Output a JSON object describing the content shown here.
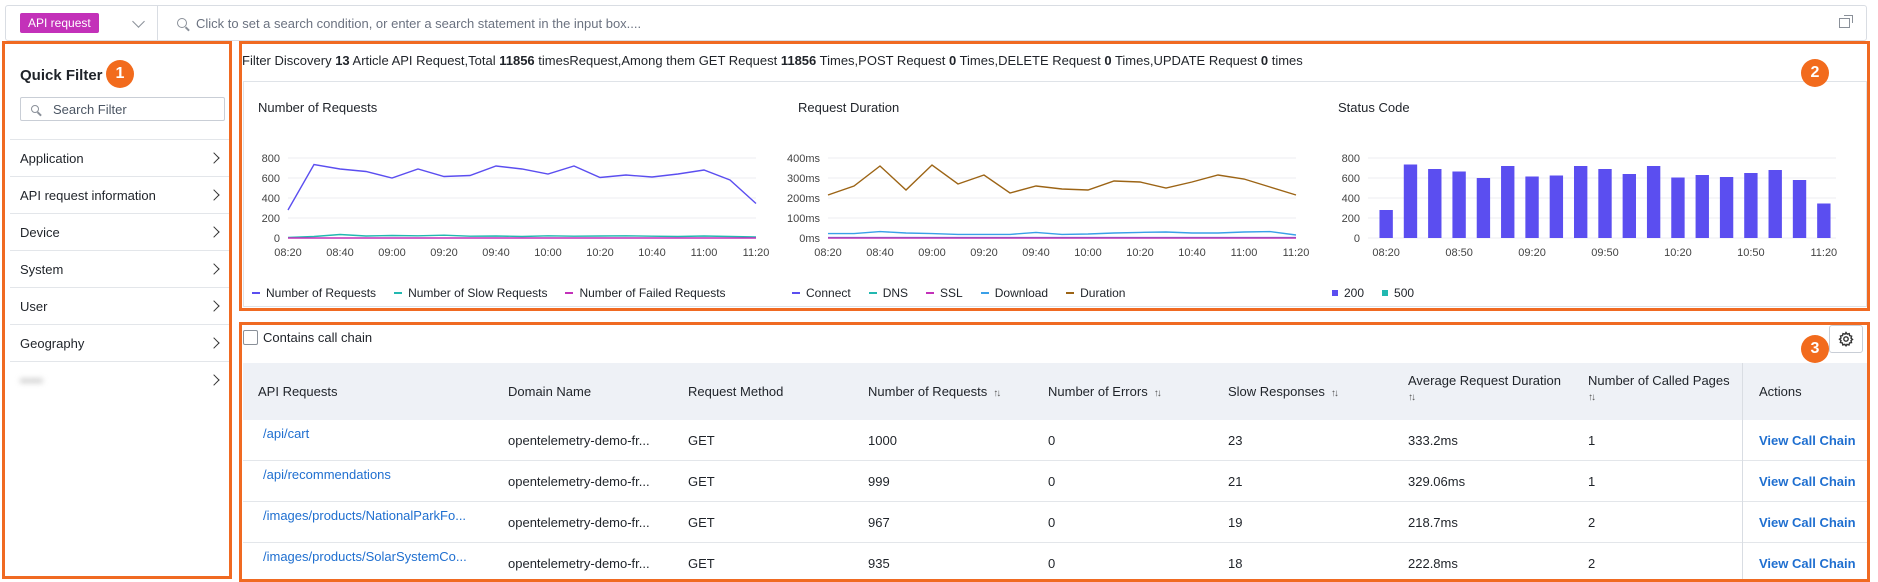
{
  "search": {
    "type_tag": "API request",
    "placeholder": "Click to set a search condition, or enter a search statement in the input box...."
  },
  "badges": [
    "1",
    "2",
    "3"
  ],
  "quick_filter": {
    "title": "Quick Filter",
    "search_placeholder": "Search Filter",
    "items": [
      {
        "label": "Application"
      },
      {
        "label": "API request information"
      },
      {
        "label": "Device"
      },
      {
        "label": "System"
      },
      {
        "label": "User"
      },
      {
        "label": "Geography"
      },
      {
        "label": "•••••"
      }
    ]
  },
  "summary": {
    "p1": "Filter Discovery ",
    "articles": "13",
    "p2": " Article API Request,Total ",
    "total": "11856",
    "p3": " timesRequest,Among them GET Request ",
    "get": "11856",
    "p4": " Times,POST Request ",
    "post": "0",
    "p5": " Times,DELETE Request ",
    "delete": "0",
    "p6": " Times,UPDATE Request ",
    "update": "0",
    "p7": " times"
  },
  "chart_data": [
    {
      "type": "line",
      "title": "Number of Requests",
      "x": [
        "08:20",
        "08:30",
        "08:40",
        "08:50",
        "09:00",
        "09:10",
        "09:20",
        "09:30",
        "09:40",
        "09:50",
        "10:00",
        "10:10",
        "10:20",
        "10:30",
        "10:40",
        "10:50",
        "11:00",
        "11:10",
        "11:20"
      ],
      "x_ticks": [
        "08:20",
        "08:40",
        "09:00",
        "09:20",
        "09:40",
        "10:00",
        "10:20",
        "10:40",
        "11:00",
        "11:20"
      ],
      "y_ticks": [
        "0",
        "200",
        "400",
        "600",
        "800"
      ],
      "ylim": [
        0,
        800
      ],
      "series": [
        {
          "name": "Number of Requests",
          "color": "#5b4ef0",
          "values": [
            280,
            735,
            690,
            665,
            600,
            690,
            615,
            625,
            720,
            690,
            640,
            720,
            605,
            630,
            610,
            640,
            680,
            580,
            345
          ]
        },
        {
          "name": "Number of Slow Requests",
          "color": "#22b8b0",
          "values": [
            5,
            15,
            35,
            20,
            25,
            22,
            28,
            18,
            20,
            15,
            22,
            18,
            20,
            22,
            18,
            15,
            20,
            15,
            10
          ]
        },
        {
          "name": "Number of Failed Requests",
          "color": "#c331b9",
          "values": [
            0,
            0,
            0,
            0,
            0,
            0,
            0,
            0,
            0,
            0,
            0,
            0,
            0,
            0,
            0,
            0,
            0,
            0,
            0
          ]
        }
      ],
      "legend": "bottom-left"
    },
    {
      "type": "line",
      "title": "Request Duration",
      "x": [
        "08:20",
        "08:30",
        "08:40",
        "08:50",
        "09:00",
        "09:10",
        "09:20",
        "09:30",
        "09:40",
        "09:50",
        "10:00",
        "10:10",
        "10:20",
        "10:30",
        "10:40",
        "10:50",
        "11:00",
        "11:10",
        "11:20"
      ],
      "x_ticks": [
        "08:20",
        "08:40",
        "09:00",
        "09:20",
        "09:40",
        "10:00",
        "10:20",
        "10:40",
        "11:00",
        "11:20"
      ],
      "y_ticks": [
        "0ms",
        "100ms",
        "200ms",
        "300ms",
        "400ms"
      ],
      "ylim": [
        0,
        400
      ],
      "series": [
        {
          "name": "Connect",
          "color": "#5b4ef0",
          "values": [
            2,
            2,
            2,
            2,
            2,
            2,
            2,
            2,
            2,
            2,
            2,
            2,
            2,
            2,
            2,
            2,
            2,
            2,
            2
          ]
        },
        {
          "name": "DNS",
          "color": "#22b8b0",
          "values": [
            1,
            1,
            1,
            1,
            1,
            1,
            1,
            1,
            1,
            1,
            1,
            1,
            1,
            1,
            1,
            1,
            1,
            1,
            1
          ]
        },
        {
          "name": "SSL",
          "color": "#c331b9",
          "values": [
            0,
            0,
            0,
            0,
            0,
            0,
            0,
            0,
            0,
            0,
            0,
            0,
            0,
            0,
            0,
            0,
            0,
            0,
            0
          ]
        },
        {
          "name": "Download",
          "color": "#3aa0e8",
          "values": [
            22,
            22,
            32,
            25,
            22,
            18,
            18,
            18,
            28,
            18,
            20,
            25,
            28,
            30,
            25,
            25,
            30,
            32,
            15
          ]
        },
        {
          "name": "Duration",
          "color": "#9c6415",
          "values": [
            215,
            260,
            360,
            240,
            365,
            270,
            315,
            225,
            260,
            245,
            240,
            285,
            280,
            250,
            280,
            315,
            295,
            255,
            215
          ]
        }
      ],
      "legend": "bottom-left"
    },
    {
      "type": "bar",
      "title": "Status Code",
      "categories": [
        "08:20",
        "08:30",
        "08:40",
        "08:50",
        "09:00",
        "09:10",
        "09:20",
        "09:30",
        "09:40",
        "09:50",
        "10:00",
        "10:10",
        "10:20",
        "10:30",
        "10:40",
        "10:50",
        "11:00",
        "11:10",
        "11:20"
      ],
      "x_ticks": [
        "08:20",
        "08:50",
        "09:20",
        "09:50",
        "10:20",
        "10:50",
        "11:20"
      ],
      "y_ticks": [
        "0",
        "200",
        "400",
        "600",
        "800"
      ],
      "ylim": [
        0,
        800
      ],
      "series": [
        {
          "name": "200",
          "color": "#5b4ef0",
          "values": [
            280,
            735,
            690,
            665,
            600,
            720,
            615,
            625,
            720,
            690,
            640,
            720,
            605,
            630,
            610,
            650,
            680,
            580,
            345
          ]
        },
        {
          "name": "500",
          "color": "#22b8b0",
          "values": [
            0,
            0,
            0,
            0,
            0,
            0,
            0,
            0,
            0,
            0,
            0,
            0,
            0,
            0,
            0,
            0,
            0,
            0,
            0
          ]
        }
      ],
      "legend": "bottom-left"
    }
  ],
  "table": {
    "checkbox_label": "Contains call chain",
    "columns": {
      "api": "API Requests",
      "domain": "Domain Name",
      "method": "Request Method",
      "requests": "Number of Requests",
      "errors": "Number of Errors",
      "slow": "Slow Responses",
      "avg_line1": "Average Request Duration",
      "pages": "Number of Called Pages",
      "actions": "Actions"
    },
    "sort_glyph": "↑↓",
    "rows": [
      {
        "api": "/api/cart",
        "domain": "opentelemetry-demo-fr...",
        "method": "GET",
        "requests": "1000",
        "errors": "0",
        "slow": "23",
        "avg": "333.2ms",
        "pages": "1",
        "action": "View Call Chain"
      },
      {
        "api": "/api/recommendations",
        "domain": "opentelemetry-demo-fr...",
        "method": "GET",
        "requests": "999",
        "errors": "0",
        "slow": "21",
        "avg": "329.06ms",
        "pages": "1",
        "action": "View Call Chain"
      },
      {
        "api": "/images/products/NationalParkFo...",
        "domain": "opentelemetry-demo-fr...",
        "method": "GET",
        "requests": "967",
        "errors": "0",
        "slow": "19",
        "avg": "218.7ms",
        "pages": "2",
        "action": "View Call Chain"
      },
      {
        "api": "/images/products/SolarSystemCo...",
        "domain": "opentelemetry-demo-fr...",
        "method": "GET",
        "requests": "935",
        "errors": "0",
        "slow": "18",
        "avg": "222.8ms",
        "pages": "2",
        "action": "View Call Chain"
      }
    ]
  }
}
